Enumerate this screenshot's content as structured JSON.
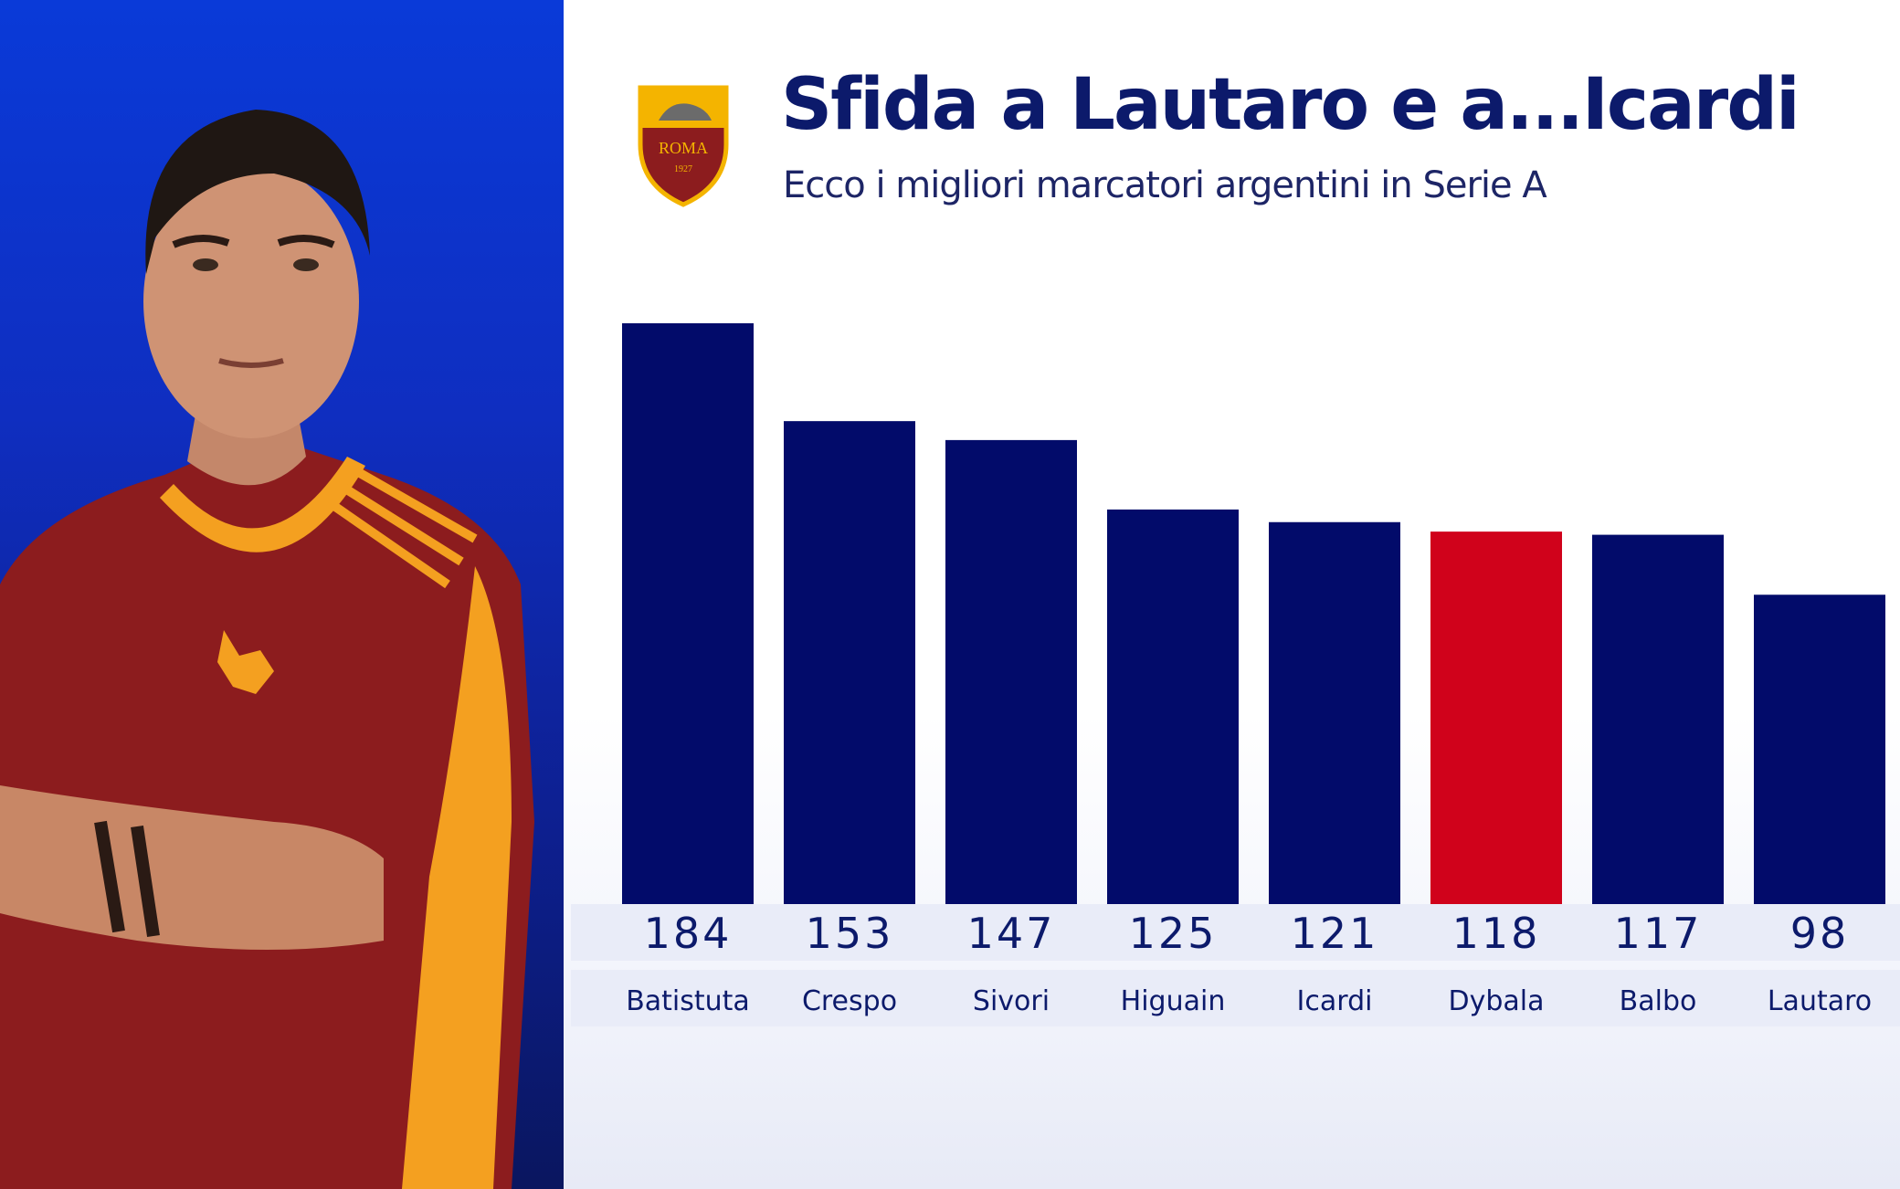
{
  "header": {
    "title": "Sfida a Lautaro e a...Icardi",
    "subtitle": "Ecco i migliori marcatori argentini in Serie A",
    "crest_text": "ROMA",
    "crest_year": "1927"
  },
  "colors": {
    "bar": "#020b6a",
    "highlight": "#d0021b",
    "left_panel": "#0f2ec0"
  },
  "chart_data": {
    "type": "bar",
    "title": "Sfida a Lautaro e a...Icardi",
    "subtitle": "Ecco i migliori marcatori argentini in Serie A",
    "categories": [
      "Batistuta",
      "Crespo",
      "Sivori",
      "Higuain",
      "Icardi",
      "Dybala",
      "Balbo",
      "Lautaro"
    ],
    "values": [
      184,
      153,
      147,
      125,
      121,
      118,
      117,
      98
    ],
    "highlight": "Dybala",
    "ylim": [
      0,
      184
    ],
    "grid": false,
    "legend": "none"
  }
}
